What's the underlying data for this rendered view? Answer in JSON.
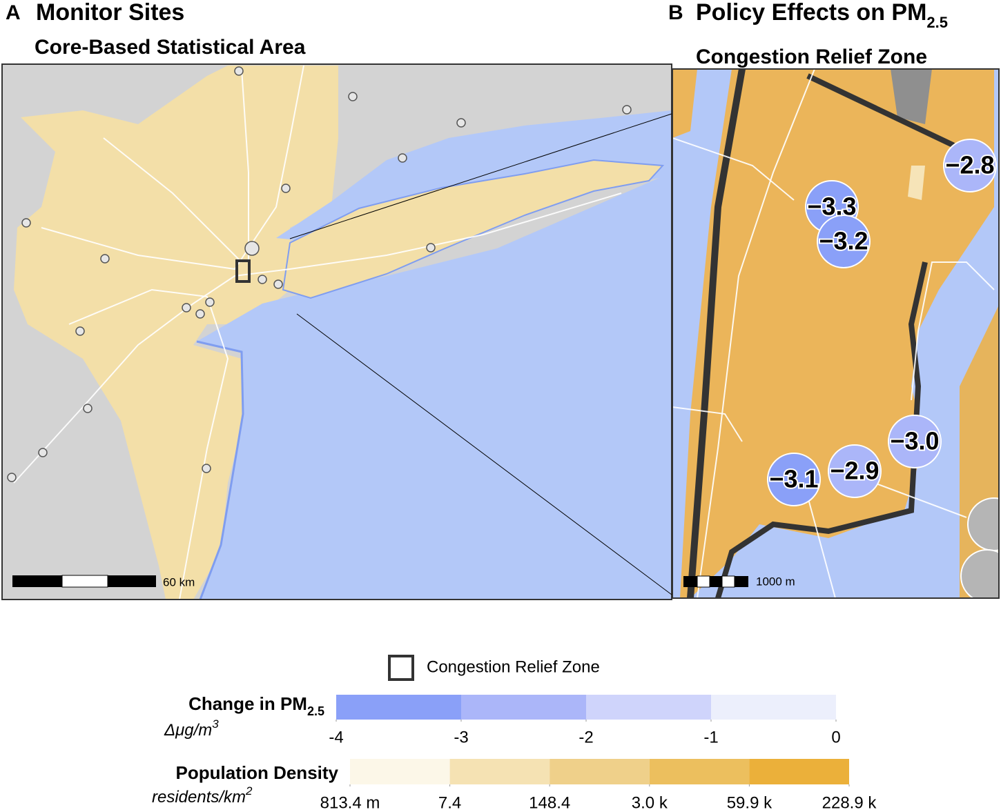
{
  "panel_a": {
    "letter": "A",
    "title": "Monitor Sites",
    "subtitle": "Core-Based  Statistical Area",
    "scale_label": "60 km"
  },
  "panel_b": {
    "letter": "B",
    "title": "Policy Effects on PM",
    "title_subscript": "2.5",
    "subtitle": "Congestion Relief Zone",
    "scale_label": "1000 m"
  },
  "chart_data": {
    "type": "map",
    "monitor_changes": {
      "values": [
        -2.8,
        -3.3,
        -3.2,
        -3.0,
        -2.9,
        -3.1
      ],
      "value_labels": [
        "−2.8",
        "−3.3",
        "−3.2",
        "−3.0",
        "−2.9",
        "−3.1"
      ]
    },
    "legend": {
      "zone_label": "Congestion Relief Zone",
      "pm": {
        "title": "Change in PM",
        "title_subscript": "2.5",
        "unit": "Δμg/m",
        "unit_superscript": "3",
        "colors": [
          "#8aa0f8",
          "#abb6f9",
          "#cfd4fb",
          "#eceffc"
        ],
        "lim": [
          -4,
          0
        ],
        "ticks": [
          -4,
          -3,
          -2,
          -1,
          0
        ]
      },
      "density": {
        "title": "Population Density",
        "unit": "residents/km",
        "unit_superscript": "2",
        "scale": "quantile",
        "colors": [
          "#fcf7e8",
          "#f5e2b3",
          "#efd08a",
          "#ecbf5e",
          "#ebb03a"
        ],
        "ticks": [
          {
            "value": 0.8134,
            "label": "813.4 m"
          },
          7.4,
          148.4,
          {
            "value": 3000,
            "label": "3.0 k"
          },
          {
            "value": 59900,
            "label": "59.9 k"
          },
          {
            "value": 228900,
            "label": "228.9 k"
          }
        ]
      }
    }
  }
}
